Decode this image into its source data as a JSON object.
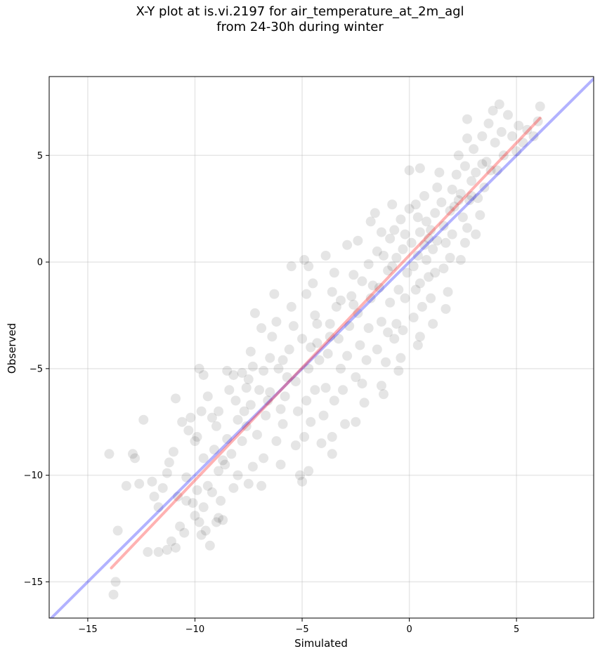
{
  "chart_data": {
    "type": "scatter",
    "title_line1": "X-Y plot at is.vi.2197 for air_temperature_at_2m_agl",
    "title_line2": "from 24-30h during winter",
    "xlabel": "Simulated",
    "ylabel": "Observed",
    "xlim": [
      -16.8,
      8.6
    ],
    "ylim": [
      -16.7,
      8.7
    ],
    "xticks": [
      -15,
      -10,
      -5,
      0,
      5
    ],
    "yticks": [
      -15,
      -10,
      -5,
      0,
      5
    ],
    "xtick_labels": [
      "−15",
      "−10",
      "−5",
      "0",
      "5"
    ],
    "ytick_labels": [
      "−15",
      "−10",
      "−5",
      "0",
      "5"
    ],
    "grid": true,
    "point_color": "#000000",
    "point_alpha": 0.1,
    "identity_line": {
      "x": [
        -16.8,
        8.6
      ],
      "y": [
        -16.8,
        8.6
      ],
      "color": "#0000ff",
      "alpha": 0.3
    },
    "fit_line": {
      "x": [
        -13.9,
        6.1
      ],
      "y": [
        -14.35,
        6.75
      ],
      "color": "#ff0000",
      "alpha": 0.3
    },
    "points": [
      {
        "x": -13.8,
        "y": -15.6
      },
      {
        "x": -13.7,
        "y": -15.0
      },
      {
        "x": -13.6,
        "y": -12.6
      },
      {
        "x": -14.0,
        "y": -9.0
      },
      {
        "x": -12.9,
        "y": -9.0
      },
      {
        "x": -12.8,
        "y": -9.2
      },
      {
        "x": -13.2,
        "y": -10.5
      },
      {
        "x": -12.6,
        "y": -10.4
      },
      {
        "x": -12.4,
        "y": -7.4
      },
      {
        "x": -12.0,
        "y": -10.3
      },
      {
        "x": -11.9,
        "y": -11.0
      },
      {
        "x": -11.7,
        "y": -11.5
      },
      {
        "x": -11.5,
        "y": -10.6
      },
      {
        "x": -11.3,
        "y": -9.9
      },
      {
        "x": -11.2,
        "y": -9.4
      },
      {
        "x": -11.0,
        "y": -8.9
      },
      {
        "x": -11.1,
        "y": -13.1
      },
      {
        "x": -10.9,
        "y": -13.4
      },
      {
        "x": -11.3,
        "y": -13.5
      },
      {
        "x": -10.7,
        "y": -12.4
      },
      {
        "x": -10.5,
        "y": -12.7
      },
      {
        "x": -10.8,
        "y": -11.0
      },
      {
        "x": -10.4,
        "y": -10.1
      },
      {
        "x": -10.6,
        "y": -7.5
      },
      {
        "x": -10.9,
        "y": -6.4
      },
      {
        "x": -10.2,
        "y": -7.3
      },
      {
        "x": -10.3,
        "y": -7.9
      },
      {
        "x": -10.0,
        "y": -8.4
      },
      {
        "x": -9.9,
        "y": -8.2
      },
      {
        "x": -10.1,
        "y": -11.3
      },
      {
        "x": -10.0,
        "y": -11.9
      },
      {
        "x": -9.8,
        "y": -12.2
      },
      {
        "x": -9.6,
        "y": -11.5
      },
      {
        "x": -9.7,
        "y": -12.8
      },
      {
        "x": -9.5,
        "y": -12.6
      },
      {
        "x": -9.3,
        "y": -13.3
      },
      {
        "x": -9.4,
        "y": -10.5
      },
      {
        "x": -9.7,
        "y": -7.0
      },
      {
        "x": -9.8,
        "y": -5.0
      },
      {
        "x": -9.6,
        "y": -5.3
      },
      {
        "x": -9.4,
        "y": -6.3
      },
      {
        "x": -9.2,
        "y": -7.3
      },
      {
        "x": -9.0,
        "y": -7.7
      },
      {
        "x": -8.9,
        "y": -7.0
      },
      {
        "x": -9.1,
        "y": -8.8
      },
      {
        "x": -9.2,
        "y": -10.8
      },
      {
        "x": -9.0,
        "y": -12.2
      },
      {
        "x": -8.9,
        "y": -12.0
      },
      {
        "x": -8.7,
        "y": -12.1
      },
      {
        "x": -8.8,
        "y": -11.2
      },
      {
        "x": -8.6,
        "y": -9.5
      },
      {
        "x": -8.5,
        "y": -8.3
      },
      {
        "x": -8.4,
        "y": -6.0
      },
      {
        "x": -8.5,
        "y": -5.1
      },
      {
        "x": -8.2,
        "y": -5.3
      },
      {
        "x": -8.1,
        "y": -6.5
      },
      {
        "x": -8.0,
        "y": -7.4
      },
      {
        "x": -8.3,
        "y": -9.0
      },
      {
        "x": -8.2,
        "y": -10.6
      },
      {
        "x": -8.0,
        "y": -10.0
      },
      {
        "x": -7.8,
        "y": -8.4
      },
      {
        "x": -7.7,
        "y": -7.0
      },
      {
        "x": -7.6,
        "y": -5.9
      },
      {
        "x": -7.5,
        "y": -5.5
      },
      {
        "x": -7.4,
        "y": -4.2
      },
      {
        "x": -7.3,
        "y": -4.9
      },
      {
        "x": -7.2,
        "y": -2.4
      },
      {
        "x": -7.0,
        "y": -6.0
      },
      {
        "x": -7.1,
        "y": -8.1
      },
      {
        "x": -7.3,
        "y": -9.6
      },
      {
        "x": -7.5,
        "y": -10.4
      },
      {
        "x": -6.9,
        "y": -10.5
      },
      {
        "x": -6.8,
        "y": -9.2
      },
      {
        "x": -6.7,
        "y": -7.2
      },
      {
        "x": -6.6,
        "y": -6.5
      },
      {
        "x": -6.5,
        "y": -4.5
      },
      {
        "x": -6.4,
        "y": -3.5
      },
      {
        "x": -6.3,
        "y": -1.5
      },
      {
        "x": -6.2,
        "y": -2.8
      },
      {
        "x": -6.1,
        "y": -5.0
      },
      {
        "x": -6.0,
        "y": -6.9
      },
      {
        "x": -6.2,
        "y": -8.4
      },
      {
        "x": -6.0,
        "y": -9.5
      },
      {
        "x": -5.9,
        "y": -7.6
      },
      {
        "x": -5.8,
        "y": -6.3
      },
      {
        "x": -5.7,
        "y": -5.4
      },
      {
        "x": -5.6,
        "y": -4.1
      },
      {
        "x": -5.5,
        "y": -2.1
      },
      {
        "x": -5.4,
        "y": -3.0
      },
      {
        "x": -5.3,
        "y": -5.6
      },
      {
        "x": -5.2,
        "y": -7.0
      },
      {
        "x": -5.3,
        "y": -8.6
      },
      {
        "x": -5.1,
        "y": -10.0
      },
      {
        "x": -5.0,
        "y": -10.3
      },
      {
        "x": -4.9,
        "y": -8.2
      },
      {
        "x": -4.8,
        "y": -6.5
      },
      {
        "x": -4.7,
        "y": -5.0
      },
      {
        "x": -4.6,
        "y": -4.0
      },
      {
        "x": -4.8,
        "y": -1.5
      },
      {
        "x": -5.5,
        "y": -0.2
      },
      {
        "x": -4.9,
        "y": 0.1
      },
      {
        "x": -4.7,
        "y": -0.2
      },
      {
        "x": -4.5,
        "y": -1.0
      },
      {
        "x": -4.4,
        "y": -2.5
      },
      {
        "x": -4.3,
        "y": -3.8
      },
      {
        "x": -4.2,
        "y": -4.6
      },
      {
        "x": -4.4,
        "y": -6.0
      },
      {
        "x": -4.6,
        "y": -7.5
      },
      {
        "x": -4.7,
        "y": -9.8
      },
      {
        "x": -4.1,
        "y": -8.5
      },
      {
        "x": -4.0,
        "y": -7.2
      },
      {
        "x": -3.9,
        "y": -5.9
      },
      {
        "x": -3.8,
        "y": -4.3
      },
      {
        "x": -3.7,
        "y": -2.9
      },
      {
        "x": -3.6,
        "y": -1.4
      },
      {
        "x": -3.9,
        "y": 0.3
      },
      {
        "x": -3.5,
        "y": -0.5
      },
      {
        "x": -3.4,
        "y": -2.1
      },
      {
        "x": -3.3,
        "y": -3.6
      },
      {
        "x": -3.2,
        "y": -5.0
      },
      {
        "x": -3.5,
        "y": -6.5
      },
      {
        "x": -3.6,
        "y": -8.2
      },
      {
        "x": -3.6,
        "y": -9.0
      },
      {
        "x": -3.0,
        "y": -7.6
      },
      {
        "x": -3.1,
        "y": -6.0
      },
      {
        "x": -2.9,
        "y": -4.4
      },
      {
        "x": -2.8,
        "y": -3.0
      },
      {
        "x": -2.7,
        "y": -1.6
      },
      {
        "x": -2.9,
        "y": 0.8
      },
      {
        "x": -2.4,
        "y": 1.0
      },
      {
        "x": -2.6,
        "y": -0.6
      },
      {
        "x": -2.4,
        "y": -2.4
      },
      {
        "x": -2.3,
        "y": -3.9
      },
      {
        "x": -2.5,
        "y": -5.4
      },
      {
        "x": -2.5,
        "y": -7.5
      },
      {
        "x": -2.1,
        "y": -6.6
      },
      {
        "x": -2.2,
        "y": -5.7
      },
      {
        "x": -2.0,
        "y": -4.6
      },
      {
        "x": -1.9,
        "y": -3.1
      },
      {
        "x": -1.8,
        "y": -1.7
      },
      {
        "x": -1.9,
        "y": -0.1
      },
      {
        "x": -1.6,
        "y": 2.3
      },
      {
        "x": -1.8,
        "y": 1.9
      },
      {
        "x": -1.5,
        "y": 0.5
      },
      {
        "x": -1.4,
        "y": -1.2
      },
      {
        "x": -1.3,
        "y": -2.8
      },
      {
        "x": -1.5,
        "y": -4.1
      },
      {
        "x": -1.3,
        "y": -5.8
      },
      {
        "x": -1.2,
        "y": -6.2
      },
      {
        "x": -1.1,
        "y": -4.7
      },
      {
        "x": -1.0,
        "y": -3.3
      },
      {
        "x": -0.9,
        "y": -1.9
      },
      {
        "x": -1.0,
        "y": -0.4
      },
      {
        "x": -0.9,
        "y": 1.1
      },
      {
        "x": -1.3,
        "y": 1.4
      },
      {
        "x": -0.8,
        "y": 2.7
      },
      {
        "x": -0.7,
        "y": 1.5
      },
      {
        "x": -0.6,
        "y": 0.2
      },
      {
        "x": -0.5,
        "y": -1.3
      },
      {
        "x": -0.6,
        "y": -2.9
      },
      {
        "x": -0.7,
        "y": -3.6
      },
      {
        "x": -0.4,
        "y": -4.5
      },
      {
        "x": -0.5,
        "y": -5.1
      },
      {
        "x": -0.3,
        "y": -3.2
      },
      {
        "x": -0.2,
        "y": -1.7
      },
      {
        "x": -0.1,
        "y": -0.5
      },
      {
        "x": -0.3,
        "y": 0.6
      },
      {
        "x": -0.2,
        "y": 1.3
      },
      {
        "x": -0.4,
        "y": 2.0
      },
      {
        "x": 0.0,
        "y": 2.5
      },
      {
        "x": 0.0,
        "y": 4.3
      },
      {
        "x": 0.1,
        "y": 0.9
      },
      {
        "x": 0.2,
        "y": -0.2
      },
      {
        "x": 0.3,
        "y": -1.3
      },
      {
        "x": 0.2,
        "y": -2.6
      },
      {
        "x": 0.4,
        "y": -3.9
      },
      {
        "x": 0.5,
        "y": -3.5
      },
      {
        "x": 0.6,
        "y": -2.1
      },
      {
        "x": 0.5,
        "y": -1.0
      },
      {
        "x": 0.4,
        "y": 0.3
      },
      {
        "x": 0.5,
        "y": 1.4
      },
      {
        "x": 0.4,
        "y": 2.1
      },
      {
        "x": 0.5,
        "y": 4.4
      },
      {
        "x": 0.7,
        "y": 3.1
      },
      {
        "x": 0.8,
        "y": 1.9
      },
      {
        "x": 0.7,
        "y": 0.8
      },
      {
        "x": 0.8,
        "y": 0.1
      },
      {
        "x": 0.9,
        "y": -0.7
      },
      {
        "x": 1.0,
        "y": -1.7
      },
      {
        "x": 1.1,
        "y": -2.9
      },
      {
        "x": 1.2,
        "y": -0.5
      },
      {
        "x": 1.1,
        "y": 0.6
      },
      {
        "x": 1.0,
        "y": 1.5
      },
      {
        "x": 1.2,
        "y": 2.3
      },
      {
        "x": 1.3,
        "y": 3.5
      },
      {
        "x": 1.4,
        "y": 4.2
      },
      {
        "x": 1.5,
        "y": 2.8
      },
      {
        "x": 1.6,
        "y": 1.7
      },
      {
        "x": 1.7,
        "y": 0.9
      },
      {
        "x": 1.6,
        "y": -0.3
      },
      {
        "x": 1.8,
        "y": -1.4
      },
      {
        "x": 1.7,
        "y": -2.2
      },
      {
        "x": 1.9,
        "y": 0.2
      },
      {
        "x": 2.0,
        "y": 1.3
      },
      {
        "x": 2.1,
        "y": 2.6
      },
      {
        "x": 2.0,
        "y": 3.4
      },
      {
        "x": 2.2,
        "y": 4.1
      },
      {
        "x": 2.3,
        "y": 5.0
      },
      {
        "x": 2.4,
        "y": 3.2
      },
      {
        "x": 2.5,
        "y": 2.1
      },
      {
        "x": 2.6,
        "y": 0.9
      },
      {
        "x": 2.4,
        "y": 0.1
      },
      {
        "x": 2.7,
        "y": 1.6
      },
      {
        "x": 2.8,
        "y": 2.9
      },
      {
        "x": 2.9,
        "y": 3.8
      },
      {
        "x": 2.6,
        "y": 4.5
      },
      {
        "x": 2.7,
        "y": 5.8
      },
      {
        "x": 2.7,
        "y": 6.7
      },
      {
        "x": 3.0,
        "y": 5.3
      },
      {
        "x": 3.1,
        "y": 4.2
      },
      {
        "x": 3.2,
        "y": 3.0
      },
      {
        "x": 3.3,
        "y": 2.2
      },
      {
        "x": 3.1,
        "y": 1.3
      },
      {
        "x": 3.5,
        "y": 3.5
      },
      {
        "x": 3.6,
        "y": 4.7
      },
      {
        "x": 3.4,
        "y": 5.9
      },
      {
        "x": 3.7,
        "y": 6.5
      },
      {
        "x": 3.9,
        "y": 7.1
      },
      {
        "x": 4.2,
        "y": 7.4
      },
      {
        "x": 4.0,
        "y": 5.6
      },
      {
        "x": 4.1,
        "y": 4.3
      },
      {
        "x": 4.4,
        "y": 5.0
      },
      {
        "x": 4.6,
        "y": 6.9
      },
      {
        "x": 4.8,
        "y": 5.9
      },
      {
        "x": 5.1,
        "y": 6.4
      },
      {
        "x": 5.3,
        "y": 5.6
      },
      {
        "x": 5.5,
        "y": 6.2
      },
      {
        "x": 5.8,
        "y": 5.9
      },
      {
        "x": 6.0,
        "y": 6.6
      },
      {
        "x": 6.1,
        "y": 7.3
      },
      {
        "x": -6.9,
        "y": -3.1
      },
      {
        "x": -7.8,
        "y": -5.2
      },
      {
        "x": -8.7,
        "y": -9.3
      },
      {
        "x": -10.4,
        "y": -11.2
      },
      {
        "x": -11.7,
        "y": -13.6
      },
      {
        "x": -12.2,
        "y": -13.6
      },
      {
        "x": -9.9,
        "y": -10.7
      },
      {
        "x": -7.4,
        "y": -6.7
      },
      {
        "x": -6.8,
        "y": -5.1
      },
      {
        "x": -5.9,
        "y": -4.6
      },
      {
        "x": -4.3,
        "y": -2.9
      },
      {
        "x": -3.2,
        "y": -1.8
      },
      {
        "x": -2.2,
        "y": -0.9
      },
      {
        "x": -1.2,
        "y": 0.3
      },
      {
        "x": 0.3,
        "y": 2.7
      },
      {
        "x": 1.3,
        "y": 1.0
      },
      {
        "x": 2.3,
        "y": 2.9
      },
      {
        "x": 3.4,
        "y": 4.6
      },
      {
        "x": 4.3,
        "y": 6.1
      },
      {
        "x": 5.0,
        "y": 5.2
      },
      {
        "x": -3.7,
        "y": -3.5
      },
      {
        "x": -2.6,
        "y": -2.0
      },
      {
        "x": -1.7,
        "y": -1.1
      },
      {
        "x": -0.8,
        "y": -0.2
      },
      {
        "x": 0.9,
        "y": 1.1
      },
      {
        "x": 1.9,
        "y": 2.4
      },
      {
        "x": 2.9,
        "y": 3.1
      },
      {
        "x": 3.8,
        "y": 4.3
      },
      {
        "x": -5.0,
        "y": -3.6
      },
      {
        "x": -6.5,
        "y": -6.1
      },
      {
        "x": -7.6,
        "y": -7.7
      },
      {
        "x": -8.9,
        "y": -9.8
      },
      {
        "x": -9.6,
        "y": -9.2
      }
    ]
  }
}
